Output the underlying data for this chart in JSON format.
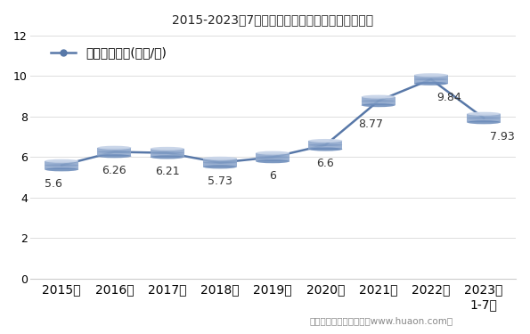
{
  "title": "2015-2023年7月大连商品交易所豆油期货成交均价",
  "legend_label": "期货成交均价(万元/手)",
  "years": [
    "2015年",
    "2016年",
    "2017年",
    "2018年",
    "2019年",
    "2020年",
    "2021年",
    "2022年",
    "2023年\n1-7月"
  ],
  "x_values": [
    0,
    1,
    2,
    3,
    4,
    5,
    6,
    7,
    8
  ],
  "values": [
    5.6,
    6.26,
    6.21,
    5.73,
    6.0,
    6.6,
    8.77,
    9.84,
    7.93
  ],
  "annotations": [
    "5.6",
    "6.26",
    "6.21",
    "5.73",
    "6",
    "6.6",
    "8.77",
    "9.84",
    "7.93"
  ],
  "ylim": [
    0,
    12
  ],
  "yticks": [
    0,
    2,
    4,
    6,
    8,
    10,
    12
  ],
  "line_color": "#5878a8",
  "cylinder_top_color": "#c8d4e8",
  "cylinder_mid_color": "#8fa8cc",
  "cylinder_bot_color": "#6888b8",
  "background_color": "#ffffff",
  "title_fontsize": 14,
  "annotation_fontsize": 9,
  "tick_fontsize": 9,
  "legend_fontsize": 10,
  "footer_text": "制图：华经产业研究院（www.huaon.com）"
}
